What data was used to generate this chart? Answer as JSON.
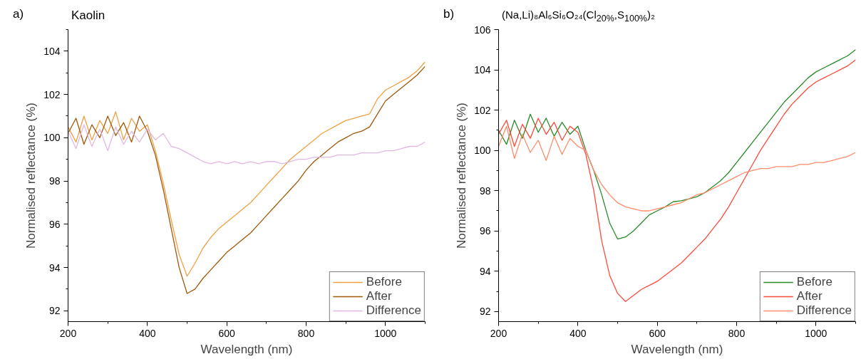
{
  "chart_data": [
    {
      "type": "line",
      "title": "Kaolin",
      "annotations": [
        "a)"
      ],
      "xlabel": "Wavelength (nm)",
      "ylabel": "Normalised reflectance (%)",
      "x": [
        200,
        220,
        240,
        260,
        280,
        300,
        320,
        340,
        360,
        380,
        400,
        420,
        440,
        460,
        480,
        500,
        520,
        540,
        560,
        580,
        600,
        620,
        640,
        660,
        680,
        700,
        720,
        740,
        760,
        780,
        800,
        820,
        840,
        860,
        880,
        900,
        920,
        940,
        960,
        980,
        1000,
        1020,
        1040,
        1060,
        1080,
        1100
      ],
      "xlim": [
        200,
        1100
      ],
      "xticks": [
        200,
        400,
        600,
        800,
        1000
      ],
      "ylim": [
        91.5,
        105
      ],
      "yticks": [
        92,
        94,
        96,
        98,
        100,
        102,
        104
      ],
      "grid": false,
      "legend": "bottom right",
      "series": [
        {
          "name": "Before",
          "color": "#f0a040",
          "values": [
            100.5,
            99.8,
            101.0,
            99.9,
            100.8,
            100.2,
            101.2,
            99.9,
            100.9,
            100.3,
            100.6,
            99.4,
            97.9,
            96.2,
            94.6,
            93.6,
            94.2,
            94.9,
            95.4,
            95.8,
            96.1,
            96.4,
            96.7,
            97.0,
            97.4,
            97.8,
            98.2,
            98.6,
            99.0,
            99.3,
            99.6,
            99.9,
            100.2,
            100.4,
            100.6,
            100.8,
            100.9,
            101.0,
            101.1,
            101.8,
            102.2,
            102.4,
            102.6,
            102.8,
            103.1,
            103.5
          ]
        },
        {
          "name": "After",
          "color": "#a0580a",
          "values": [
            100.2,
            100.9,
            99.7,
            100.6,
            100.0,
            101.0,
            100.1,
            100.7,
            99.8,
            101.0,
            100.3,
            99.2,
            97.6,
            95.8,
            94.0,
            92.8,
            93.0,
            93.5,
            93.9,
            94.3,
            94.7,
            95.0,
            95.3,
            95.6,
            96.0,
            96.4,
            96.8,
            97.2,
            97.6,
            98.0,
            98.5,
            98.9,
            99.2,
            99.5,
            99.8,
            100.0,
            100.2,
            100.3,
            100.5,
            101.1,
            101.7,
            102.0,
            102.3,
            102.6,
            102.9,
            103.3
          ]
        },
        {
          "name": "Difference",
          "color": "#e0b8e0",
          "values": [
            100.3,
            99.5,
            100.6,
            99.6,
            100.4,
            99.4,
            100.5,
            99.7,
            100.3,
            99.8,
            100.4,
            99.9,
            100.2,
            99.6,
            99.5,
            99.3,
            99.1,
            98.9,
            98.8,
            98.9,
            98.8,
            98.9,
            98.8,
            98.9,
            98.8,
            98.9,
            98.9,
            98.8,
            98.9,
            99.0,
            99.0,
            99.1,
            99.1,
            99.1,
            99.2,
            99.2,
            99.2,
            99.3,
            99.3,
            99.3,
            99.4,
            99.4,
            99.5,
            99.6,
            99.6,
            99.8
          ]
        }
      ]
    },
    {
      "type": "line",
      "title": "(Na,Li)₈Al₆Si₆O₂₄(Cl$_{20%}$,S$_{100%}$)₂",
      "annotations": [
        "b)"
      ],
      "xlabel": "Wavelength (nm)",
      "ylabel": "Normalised reflectance (%)",
      "x": [
        200,
        220,
        240,
        260,
        280,
        300,
        320,
        340,
        360,
        380,
        400,
        420,
        440,
        460,
        480,
        500,
        520,
        540,
        560,
        580,
        600,
        620,
        640,
        660,
        680,
        700,
        720,
        740,
        760,
        780,
        800,
        820,
        840,
        860,
        880,
        900,
        920,
        940,
        960,
        980,
        1000,
        1020,
        1040,
        1060,
        1080,
        1100
      ],
      "xlim": [
        200,
        1100
      ],
      "xticks": [
        200,
        400,
        600,
        800,
        1000
      ],
      "ylim": [
        91.5,
        106
      ],
      "yticks": [
        92,
        94,
        96,
        98,
        100,
        102,
        104,
        106
      ],
      "grid": false,
      "legend": "bottom right",
      "series": [
        {
          "name": "Before",
          "color": "#2a8a2a",
          "values": [
            101.0,
            100.3,
            101.5,
            100.6,
            101.8,
            100.9,
            101.6,
            100.7,
            101.4,
            100.8,
            101.2,
            100.0,
            99.0,
            97.8,
            96.4,
            95.6,
            95.7,
            96.0,
            96.4,
            96.8,
            97.0,
            97.2,
            97.45,
            97.5,
            97.6,
            97.7,
            97.9,
            98.2,
            98.5,
            98.9,
            99.4,
            99.9,
            100.4,
            100.9,
            101.4,
            101.9,
            102.4,
            102.8,
            103.2,
            103.6,
            103.9,
            104.1,
            104.3,
            104.5,
            104.7,
            105.0
          ]
        },
        {
          "name": "After",
          "color": "#ff4a3a",
          "values": [
            100.8,
            101.5,
            100.2,
            101.3,
            100.6,
            101.6,
            100.8,
            101.4,
            100.5,
            101.2,
            100.9,
            99.8,
            98.0,
            95.5,
            93.8,
            92.9,
            92.5,
            92.8,
            93.1,
            93.3,
            93.5,
            93.8,
            94.1,
            94.4,
            94.8,
            95.2,
            95.6,
            96.1,
            96.6,
            97.2,
            97.9,
            98.6,
            99.3,
            100.0,
            100.6,
            101.2,
            101.8,
            102.3,
            102.7,
            103.1,
            103.4,
            103.6,
            103.8,
            104.0,
            104.2,
            104.5
          ]
        },
        {
          "name": "Difference",
          "color": "#ff8c6a",
          "values": [
            100.2,
            101.2,
            99.6,
            100.8,
            99.9,
            100.5,
            99.5,
            100.7,
            99.8,
            100.6,
            100.2,
            100.0,
            99.0,
            98.3,
            97.8,
            97.4,
            97.2,
            97.1,
            97.0,
            97.0,
            97.1,
            97.2,
            97.3,
            97.4,
            97.6,
            97.8,
            97.9,
            98.1,
            98.3,
            98.5,
            98.7,
            98.9,
            99.0,
            99.1,
            99.1,
            99.2,
            99.2,
            99.2,
            99.3,
            99.3,
            99.4,
            99.4,
            99.5,
            99.6,
            99.7,
            99.9
          ]
        }
      ]
    }
  ]
}
